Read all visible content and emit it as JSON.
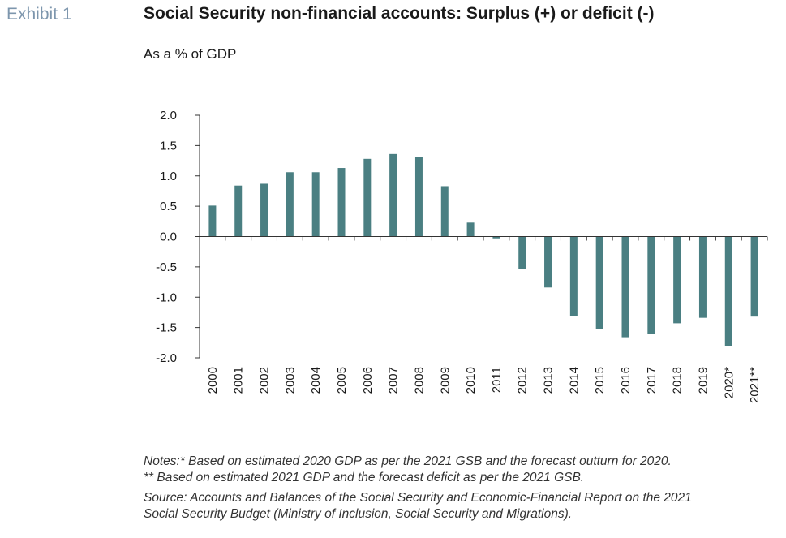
{
  "header": {
    "exhibit": "Exhibit 1",
    "title": "Social Security non-financial accounts: Surplus (+) or deficit (-)",
    "subtitle": "As a % of GDP"
  },
  "chart_data": {
    "type": "bar",
    "categories": [
      "2000",
      "2001",
      "2002",
      "2003",
      "2004",
      "2005",
      "2006",
      "2007",
      "2008",
      "2009",
      "2010",
      "2011",
      "2012",
      "2013",
      "2014",
      "2015",
      "2016",
      "2017",
      "2018",
      "2019",
      "2020*",
      "2021**"
    ],
    "values": [
      0.51,
      0.84,
      0.87,
      1.06,
      1.06,
      1.13,
      1.28,
      1.36,
      1.31,
      0.83,
      0.23,
      -0.03,
      -0.54,
      -0.84,
      -1.31,
      -1.53,
      -1.66,
      -1.6,
      -1.43,
      -1.34,
      -1.8,
      -1.32
    ],
    "ylim": [
      -2.0,
      2.0
    ],
    "yticks": [
      "2.0",
      "1.5",
      "1.0",
      "0.5",
      "0.0",
      "-0.5",
      "-1.0",
      "-1.5",
      "-2.0"
    ],
    "ytick_values": [
      2.0,
      1.5,
      1.0,
      0.5,
      0.0,
      -0.5,
      -1.0,
      -1.5,
      -2.0
    ],
    "bar_color": "#4a7f82",
    "grid": false,
    "legend": "none"
  },
  "notes": {
    "line1": "Notes:* Based on estimated 2020 GDP as per the 2021 GSB and the forecast outturn for 2020.",
    "line2": "** Based on estimated 2021 GDP and the forecast deficit as per the 2021 GSB.",
    "source1": "Source: Accounts and Balances of the Social Security and Economic-Financial Report on the 2021",
    "source2": "Social Security Budget (Ministry of Inclusion, Social Security and Migrations)."
  }
}
